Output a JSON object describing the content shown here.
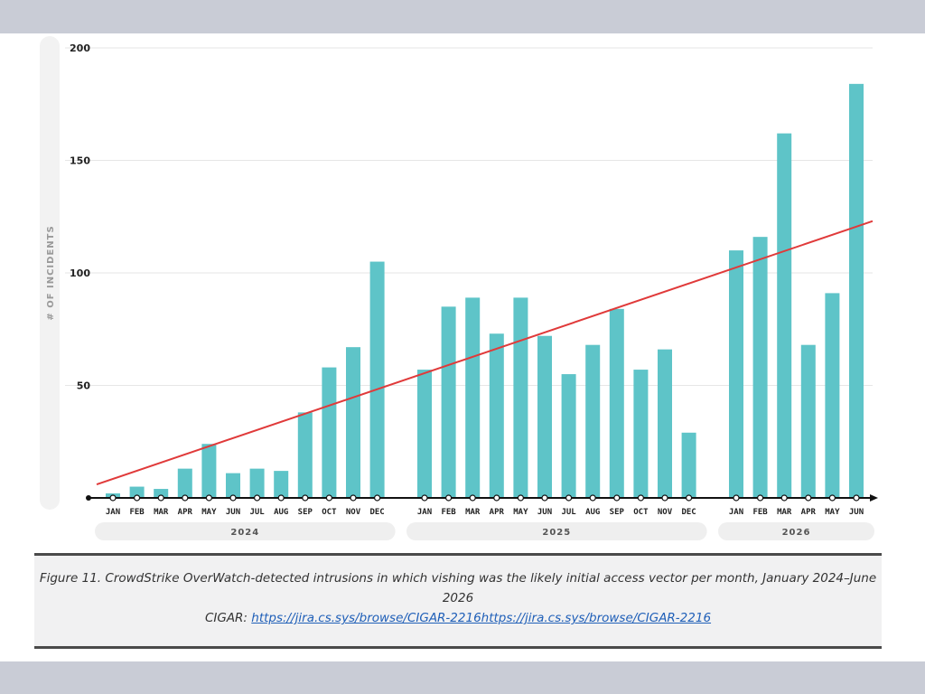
{
  "chart_data": {
    "type": "bar",
    "ylabel": "# OF INCIDENTS",
    "ylim": [
      0,
      200
    ],
    "yticks": [
      50,
      100,
      150,
      200
    ],
    "grid": true,
    "bar_color": "#5ec4c8",
    "trend_color": "#e03a3a",
    "groups": [
      {
        "year": "2024",
        "categories": [
          "JAN",
          "FEB",
          "MAR",
          "APR",
          "MAY",
          "JUN",
          "JUL",
          "AUG",
          "SEP",
          "OCT",
          "NOV",
          "DEC"
        ],
        "values": [
          2,
          5,
          4,
          13,
          24,
          11,
          13,
          12,
          38,
          58,
          67,
          105
        ]
      },
      {
        "year": "2025",
        "categories": [
          "JAN",
          "FEB",
          "MAR",
          "APR",
          "MAY",
          "JUN",
          "JUL",
          "AUG",
          "SEP",
          "OCT",
          "NOV",
          "DEC"
        ],
        "values": [
          57,
          85,
          89,
          73,
          89,
          72,
          55,
          68,
          84,
          57,
          66,
          29
        ]
      },
      {
        "year": "2026",
        "categories": [
          "JAN",
          "FEB",
          "MAR",
          "APR",
          "MAY",
          "JUN"
        ],
        "values": [
          110,
          116,
          162,
          68,
          91,
          184
        ]
      }
    ],
    "trendline": {
      "start_value": 6,
      "end_value": 123
    }
  },
  "caption": {
    "text": "Figure 11. CrowdStrike OverWatch-detected intrusions in which vishing was the likely initial access vector per month, January 2024–June 2026",
    "cigar_label": "CIGAR: ",
    "cigar_link": "https://jira.cs.sys/browse/CIGAR-2216https://jira.cs.sys/browse/CIGAR-2216"
  }
}
